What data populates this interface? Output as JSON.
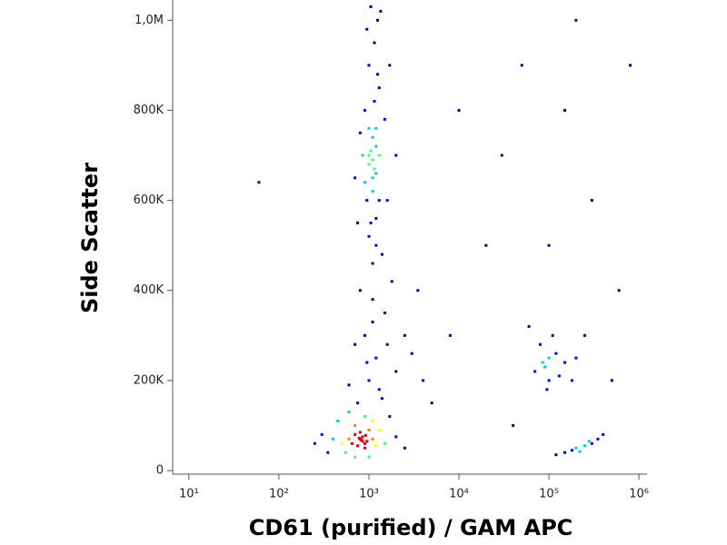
{
  "chart_data": {
    "type": "scatter",
    "x_label": "CD61 (purified) / GAM APC",
    "y_label": "Side Scatter",
    "xscale": "log",
    "xlim": [
      6.6,
      1230000
    ],
    "ylim": [
      -8000,
      1045000
    ],
    "xticks": [
      {
        "value": 10,
        "label": "10¹"
      },
      {
        "value": 100,
        "label": "10²"
      },
      {
        "value": 1000,
        "label": "10³"
      },
      {
        "value": 10000,
        "label": "10⁴"
      },
      {
        "value": 100000,
        "label": "10⁵"
      },
      {
        "value": 1000000,
        "label": "10⁶"
      }
    ],
    "yticks": [
      0,
      {
        "value": 200000,
        "label": "200K"
      },
      {
        "value": 400000,
        "label": "400K"
      },
      {
        "value": 600000,
        "label": "600K"
      },
      {
        "value": 800000,
        "label": "800K"
      },
      {
        "value": 1000000,
        "label": "1,0M"
      }
    ],
    "colormap": [
      "#00008f",
      "#0000ff",
      "#00c8ff",
      "#40ff80",
      "#ffff00",
      "#ff8000",
      "#e00000"
    ],
    "x": [
      1000,
      1100,
      1200,
      900,
      1300,
      1000,
      1150,
      1250,
      950,
      1050,
      1200,
      1400,
      800,
      1500,
      1100,
      1000,
      1200,
      1300,
      900,
      1100,
      1000,
      1150,
      1250,
      850,
      1600,
      700,
      1050,
      1350,
      950,
      1200,
      1100,
      1000,
      1300,
      1100,
      1050,
      1150,
      1700,
      750,
      2000,
      1200,
      800,
      900,
      700,
      850,
      950,
      750,
      1000,
      600,
      650,
      1100,
      800,
      900,
      700,
      500,
      1200,
      400,
      300,
      1500,
      2000,
      850,
      780,
      920,
      1300,
      550,
      1000,
      700,
      450,
      1700,
      600,
      2500,
      350,
      250,
      1100,
      900,
      820,
      1000,
      1200,
      900,
      1500,
      800,
      1300,
      2000,
      700,
      1100,
      3000,
      600,
      1800,
      1400,
      2500,
      950,
      4000,
      1600,
      1100,
      750,
      3500,
      90000,
      100000,
      120000,
      80000,
      150000,
      70000,
      110000,
      200000,
      95000,
      130000,
      60000,
      180000,
      100000,
      85000,
      250000,
      150000,
      200000,
      250000,
      300000,
      120000,
      350000,
      180000,
      400000,
      220000,
      280000,
      20000,
      150000,
      50000,
      300000,
      8000,
      600000,
      30000,
      200000,
      5000,
      100000,
      40000,
      500000,
      10000,
      800000,
      60
    ],
    "values": [
      700000,
      650000,
      720000,
      800000,
      850000,
      900000,
      950000,
      1000000,
      600000,
      550000,
      500000,
      480000,
      750000,
      780000,
      620000,
      680000,
      660000,
      700000,
      640000,
      740000,
      760000,
      820000,
      880000,
      700000,
      600000,
      650000,
      1030000,
      1020000,
      980000,
      560000,
      460000,
      520000,
      600000,
      690000,
      710000,
      670000,
      900000,
      550000,
      700000,
      760000,
      70000,
      60000,
      80000,
      75000,
      65000,
      55000,
      90000,
      70000,
      60000,
      70000,
      85000,
      50000,
      100000,
      60000,
      55000,
      70000,
      80000,
      60000,
      75000,
      65000,
      72000,
      78000,
      90000,
      40000,
      30000,
      30000,
      110000,
      120000,
      130000,
      50000,
      40000,
      60000,
      110000,
      120000,
      68000,
      200000,
      250000,
      300000,
      350000,
      400000,
      180000,
      220000,
      280000,
      330000,
      260000,
      190000,
      420000,
      160000,
      300000,
      240000,
      200000,
      280000,
      380000,
      150000,
      400000,
      230000,
      200000,
      260000,
      280000,
      240000,
      220000,
      300000,
      250000,
      180000,
      210000,
      320000,
      200000,
      250000,
      240000,
      300000,
      40000,
      50000,
      55000,
      60000,
      35000,
      70000,
      45000,
      80000,
      42000,
      65000,
      500000,
      800000,
      900000,
      600000,
      300000,
      400000,
      700000,
      1000000,
      150000,
      500000,
      100000,
      200000,
      800000,
      900000,
      640000
    ]
  }
}
